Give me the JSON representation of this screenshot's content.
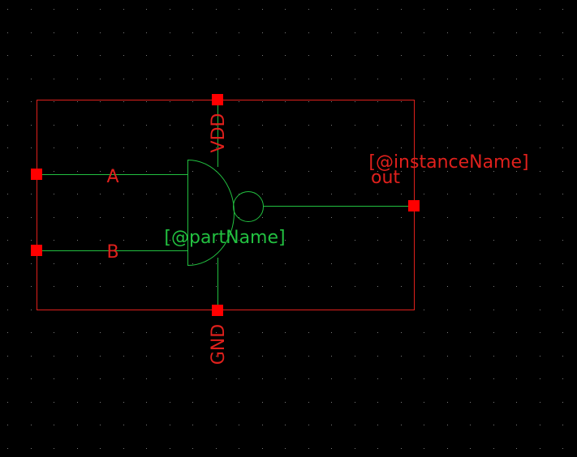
{
  "schematic": {
    "labels": {
      "instance_name": "[@instanceName]",
      "output_pin": "out",
      "part_name": "[@partName]",
      "input_a": "A",
      "input_b": "B",
      "power_pin": "VDD",
      "ground_pin": "GND"
    },
    "symbol": "nand-gate",
    "colors": {
      "background": "#000000",
      "grid_dot": "#7a7a7a",
      "boundary": "#e0201c",
      "pin": "#ff0000",
      "gate_body": "#22c040",
      "text_red": "#e0201c",
      "text_green": "#22c040"
    }
  }
}
